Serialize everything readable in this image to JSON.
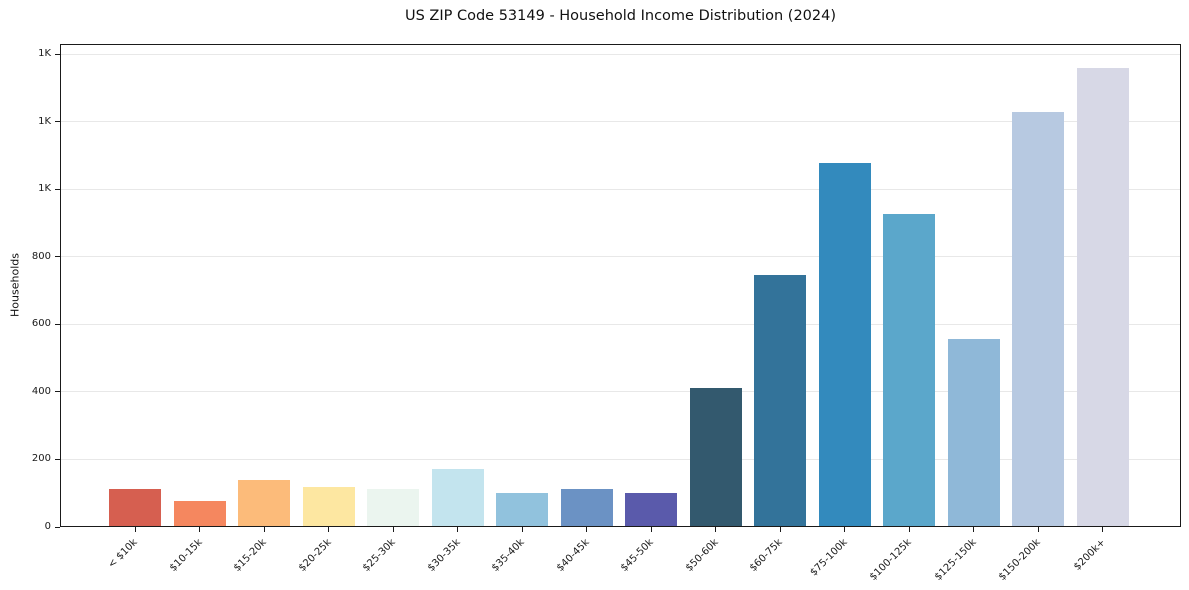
{
  "page": {
    "background": "#ffffff"
  },
  "chart_data": {
    "type": "bar",
    "title": "US ZIP Code 53149 - Household Income Distribution (2024)",
    "xlabel": "",
    "ylabel": "Households",
    "categories": [
      "< $10k",
      "$10-15k",
      "$15-20k",
      "$20-25k",
      "$25-30k",
      "$30-35k",
      "$35-40k",
      "$40-45k",
      "$45-50k",
      "$50-60k",
      "$60-75k",
      "$75-100k",
      "$100-125k",
      "$125-150k",
      "$150-200k",
      "$200k+"
    ],
    "values": [
      113,
      78,
      140,
      118,
      113,
      172,
      101,
      113,
      102,
      411,
      745,
      1078,
      928,
      557,
      1230,
      1360
    ],
    "bar_colors": [
      "#d65f50",
      "#f5875f",
      "#fcbb7a",
      "#fde7a1",
      "#ebf5ef",
      "#c3e4ee",
      "#91c2dd",
      "#6b92c4",
      "#5a5aab",
      "#33596e",
      "#33739a",
      "#338abd",
      "#5ba7cb",
      "#8fb8d8",
      "#b7c9e1",
      "#d7d8e6"
    ],
    "ylim": [
      0,
      1430
    ],
    "ytick_values": [
      0,
      200,
      400,
      600,
      800,
      1000,
      1200,
      1400
    ],
    "ytick_labels": [
      "0",
      "200",
      "400",
      "600",
      "800",
      "1K",
      "1K",
      "1K"
    ],
    "x_tick_rotation": 45,
    "grid": "horizontal",
    "gridline_color": "#e8e8e8",
    "axis_color": "#1a1a1a",
    "legend": "none"
  }
}
